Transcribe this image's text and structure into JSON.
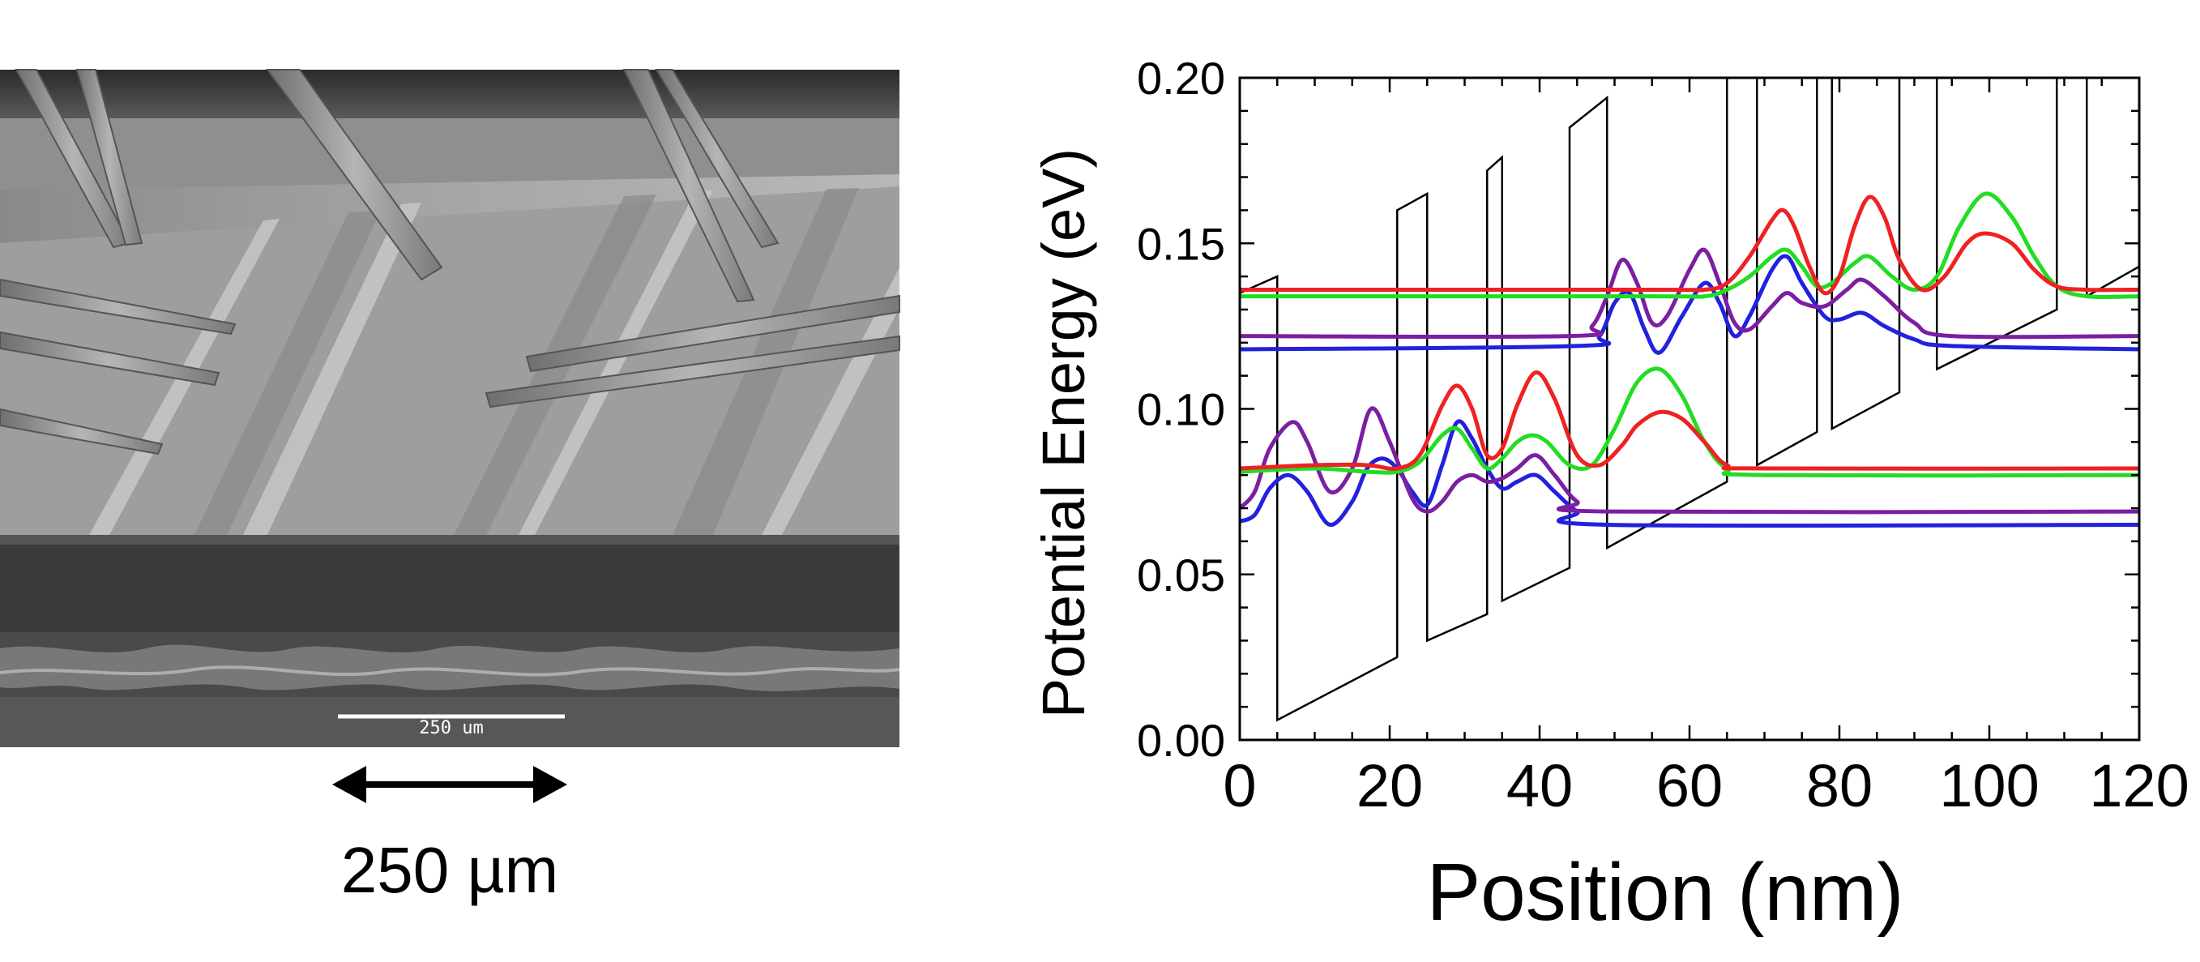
{
  "sem_image": {
    "scale_bar_text": "250 um",
    "scale_label": "250 µm"
  },
  "chart_data": {
    "type": "line",
    "title": "",
    "xlabel": "Position (nm)",
    "ylabel": "Potential Energy (eV)",
    "xlim": [
      0,
      120
    ],
    "ylim": [
      0,
      0.2
    ],
    "xticks": [
      0,
      20,
      40,
      60,
      80,
      100,
      120
    ],
    "yticks": [
      0.0,
      0.05,
      0.1,
      0.15,
      0.2
    ],
    "xtick_labels": [
      "0",
      "20",
      "40",
      "60",
      "80",
      "100",
      "120"
    ],
    "ytick_labels": [
      "0.00",
      "0.05",
      "0.10",
      "0.15",
      "0.20"
    ],
    "grid": false,
    "legend": "none",
    "band_edge": {
      "color": "#000000",
      "points": [
        [
          0,
          0.135
        ],
        [
          5,
          0.14
        ],
        [
          5,
          0.006
        ],
        [
          21,
          0.025
        ],
        [
          21,
          0.16
        ],
        [
          25,
          0.165
        ],
        [
          25,
          0.03
        ],
        [
          33,
          0.038
        ],
        [
          33,
          0.172
        ],
        [
          35,
          0.176
        ],
        [
          35,
          0.042
        ],
        [
          44,
          0.052
        ],
        [
          44,
          0.185
        ],
        [
          49,
          0.194
        ],
        [
          49,
          0.058
        ],
        [
          65,
          0.078
        ],
        [
          65,
          0.2
        ],
        [
          69,
          0.2
        ],
        [
          69,
          0.083
        ],
        [
          77,
          0.093
        ],
        [
          77,
          0.2
        ],
        [
          79,
          0.2
        ],
        [
          79,
          0.094
        ],
        [
          88,
          0.105
        ],
        [
          88,
          0.2
        ],
        [
          93,
          0.2
        ],
        [
          93,
          0.112
        ],
        [
          109,
          0.13
        ],
        [
          109,
          0.2
        ],
        [
          113,
          0.2
        ],
        [
          113,
          0.134
        ],
        [
          120,
          0.143
        ]
      ]
    },
    "series": [
      {
        "color": "#2222dd",
        "values": [
          [
            0,
            0.066
          ],
          [
            2,
            0.068
          ],
          [
            4,
            0.076
          ],
          [
            6.5,
            0.08
          ],
          [
            9,
            0.075
          ],
          [
            12,
            0.065
          ],
          [
            15,
            0.072
          ],
          [
            17,
            0.082
          ],
          [
            19,
            0.085
          ],
          [
            21,
            0.082
          ],
          [
            23,
            0.075
          ],
          [
            25,
            0.071
          ],
          [
            27,
            0.083
          ],
          [
            29,
            0.096
          ],
          [
            31,
            0.091
          ],
          [
            33,
            0.082
          ],
          [
            35,
            0.076
          ],
          [
            37,
            0.078
          ],
          [
            39.5,
            0.08
          ],
          [
            42,
            0.075
          ],
          [
            45,
            0.069
          ],
          [
            49,
            0.065
          ],
          [
            120,
            0.065
          ]
        ]
      },
      {
        "color": "#2222dd",
        "values": [
          [
            0,
            0.118
          ],
          [
            45,
            0.119
          ],
          [
            48,
            0.122
          ],
          [
            50,
            0.132
          ],
          [
            52,
            0.135
          ],
          [
            54,
            0.124
          ],
          [
            56,
            0.117
          ],
          [
            59,
            0.128
          ],
          [
            62,
            0.138
          ],
          [
            64,
            0.132
          ],
          [
            66,
            0.122
          ],
          [
            68,
            0.128
          ],
          [
            71,
            0.142
          ],
          [
            73,
            0.146
          ],
          [
            75,
            0.138
          ],
          [
            78,
            0.128
          ],
          [
            80,
            0.127
          ],
          [
            83,
            0.129
          ],
          [
            86,
            0.125
          ],
          [
            90,
            0.121
          ],
          [
            95,
            0.119
          ],
          [
            120,
            0.118
          ]
        ]
      },
      {
        "color": "#7b1fa2",
        "values": [
          [
            0,
            0.07
          ],
          [
            2,
            0.075
          ],
          [
            4,
            0.088
          ],
          [
            7,
            0.096
          ],
          [
            9,
            0.09
          ],
          [
            12,
            0.075
          ],
          [
            15,
            0.082
          ],
          [
            17.5,
            0.1
          ],
          [
            20,
            0.09
          ],
          [
            23,
            0.073
          ],
          [
            25,
            0.069
          ],
          [
            27,
            0.072
          ],
          [
            29,
            0.078
          ],
          [
            31,
            0.08
          ],
          [
            33,
            0.078
          ],
          [
            35,
            0.079
          ],
          [
            37,
            0.082
          ],
          [
            39.5,
            0.086
          ],
          [
            42,
            0.08
          ],
          [
            45,
            0.072
          ],
          [
            49,
            0.069
          ],
          [
            120,
            0.069
          ]
        ]
      },
      {
        "color": "#7b1fa2",
        "values": [
          [
            0,
            0.122
          ],
          [
            44,
            0.122
          ],
          [
            47,
            0.125
          ],
          [
            49,
            0.134
          ],
          [
            51,
            0.145
          ],
          [
            53,
            0.138
          ],
          [
            55,
            0.126
          ],
          [
            57,
            0.128
          ],
          [
            60,
            0.142
          ],
          [
            62,
            0.148
          ],
          [
            64,
            0.138
          ],
          [
            66,
            0.126
          ],
          [
            68,
            0.124
          ],
          [
            71,
            0.131
          ],
          [
            73,
            0.135
          ],
          [
            75,
            0.132
          ],
          [
            78,
            0.131
          ],
          [
            81,
            0.136
          ],
          [
            83,
            0.139
          ],
          [
            86,
            0.134
          ],
          [
            90,
            0.126
          ],
          [
            95,
            0.122
          ],
          [
            120,
            0.122
          ]
        ]
      },
      {
        "color": "#22dd22",
        "values": [
          [
            0,
            0.081
          ],
          [
            10,
            0.082
          ],
          [
            17,
            0.081
          ],
          [
            21,
            0.081
          ],
          [
            24,
            0.084
          ],
          [
            27,
            0.092
          ],
          [
            29,
            0.094
          ],
          [
            31,
            0.088
          ],
          [
            33,
            0.082
          ],
          [
            35,
            0.085
          ],
          [
            37,
            0.09
          ],
          [
            39,
            0.092
          ],
          [
            41,
            0.09
          ],
          [
            44,
            0.083
          ],
          [
            47,
            0.083
          ],
          [
            50,
            0.094
          ],
          [
            53,
            0.108
          ],
          [
            56,
            0.112
          ],
          [
            59,
            0.104
          ],
          [
            62,
            0.09
          ],
          [
            65,
            0.082
          ],
          [
            70,
            0.08
          ],
          [
            120,
            0.08
          ]
        ]
      },
      {
        "color": "#22dd22",
        "values": [
          [
            0,
            0.134
          ],
          [
            55,
            0.134
          ],
          [
            62,
            0.134
          ],
          [
            65,
            0.136
          ],
          [
            68,
            0.14
          ],
          [
            71,
            0.146
          ],
          [
            73,
            0.148
          ],
          [
            75,
            0.143
          ],
          [
            77,
            0.137
          ],
          [
            79,
            0.138
          ],
          [
            82,
            0.144
          ],
          [
            84,
            0.146
          ],
          [
            87,
            0.14
          ],
          [
            90,
            0.136
          ],
          [
            93,
            0.14
          ],
          [
            96,
            0.155
          ],
          [
            99.5,
            0.165
          ],
          [
            103,
            0.158
          ],
          [
            106,
            0.146
          ],
          [
            109,
            0.137
          ],
          [
            113,
            0.134
          ],
          [
            120,
            0.134
          ]
        ]
      },
      {
        "color": "#ee2222",
        "values": [
          [
            0,
            0.082
          ],
          [
            10,
            0.083
          ],
          [
            17,
            0.083
          ],
          [
            21,
            0.082
          ],
          [
            24,
            0.086
          ],
          [
            27,
            0.101
          ],
          [
            29,
            0.107
          ],
          [
            31,
            0.1
          ],
          [
            33,
            0.086
          ],
          [
            35,
            0.088
          ],
          [
            37,
            0.101
          ],
          [
            39.5,
            0.111
          ],
          [
            42,
            0.103
          ],
          [
            45,
            0.086
          ],
          [
            48,
            0.083
          ],
          [
            51,
            0.089
          ],
          [
            53,
            0.095
          ],
          [
            56,
            0.099
          ],
          [
            59,
            0.097
          ],
          [
            62,
            0.09
          ],
          [
            65,
            0.083
          ],
          [
            70,
            0.082
          ],
          [
            120,
            0.082
          ]
        ]
      },
      {
        "color": "#ee2222",
        "values": [
          [
            0,
            0.136
          ],
          [
            55,
            0.136
          ],
          [
            62,
            0.136
          ],
          [
            65,
            0.138
          ],
          [
            68,
            0.146
          ],
          [
            71,
            0.157
          ],
          [
            72.5,
            0.16
          ],
          [
            74,
            0.155
          ],
          [
            76,
            0.143
          ],
          [
            78,
            0.135
          ],
          [
            80,
            0.14
          ],
          [
            82,
            0.155
          ],
          [
            84,
            0.164
          ],
          [
            86,
            0.158
          ],
          [
            88,
            0.145
          ],
          [
            91,
            0.136
          ],
          [
            94,
            0.14
          ],
          [
            97,
            0.15
          ],
          [
            99.5,
            0.153
          ],
          [
            103,
            0.15
          ],
          [
            106,
            0.142
          ],
          [
            109,
            0.137
          ],
          [
            113,
            0.136
          ],
          [
            120,
            0.136
          ]
        ]
      }
    ]
  }
}
